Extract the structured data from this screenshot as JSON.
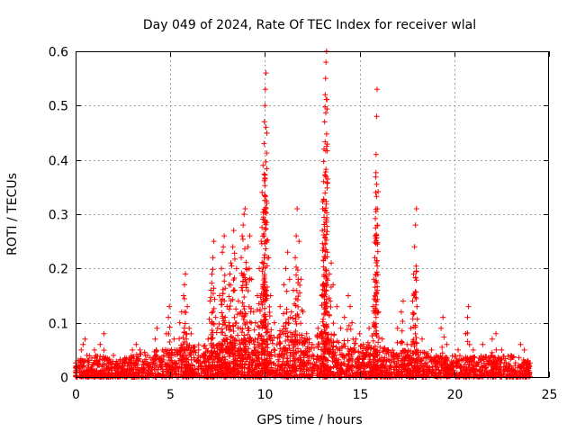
{
  "chart_data": {
    "type": "scatter",
    "title": "Day 049 of 2024, Rate Of TEC Index for receiver wlal",
    "xlabel": "GPS time / hours",
    "ylabel": "ROTI / TECUs",
    "xlim": [
      0,
      25
    ],
    "ylim": [
      0,
      0.6
    ],
    "xticks": [
      0,
      5,
      10,
      15,
      20,
      25
    ],
    "yticks": [
      0,
      0.1,
      0.2,
      0.3,
      0.4,
      0.5,
      0.6
    ],
    "xtick_labels": [
      "0",
      "5",
      "10",
      "15",
      "20",
      "25"
    ],
    "ytick_labels": [
      "0",
      "0.1",
      "0.2",
      "0.3",
      "0.4",
      "0.5",
      "0.6"
    ],
    "grid": true,
    "marker": "+",
    "series_color": "#ff0000",
    "series": [
      {
        "name": "ROTI",
        "points": [
          [
            0.2,
            0.03
          ],
          [
            0.3,
            0.05
          ],
          [
            0.4,
            0.06
          ],
          [
            0.5,
            0.07
          ],
          [
            0.6,
            0.04
          ],
          [
            1.0,
            0.05
          ],
          [
            1.3,
            0.06
          ],
          [
            1.5,
            0.08
          ],
          [
            2.0,
            0.04
          ],
          [
            2.5,
            0.03
          ],
          [
            3.0,
            0.05
          ],
          [
            3.2,
            0.06
          ],
          [
            3.4,
            0.05
          ],
          [
            3.8,
            0.04
          ],
          [
            4.2,
            0.07
          ],
          [
            4.3,
            0.09
          ],
          [
            4.6,
            0.05
          ],
          [
            4.8,
            0.08
          ],
          [
            4.9,
            0.11
          ],
          [
            4.95,
            0.13
          ],
          [
            5.2,
            0.07
          ],
          [
            5.5,
            0.1
          ],
          [
            5.6,
            0.12
          ],
          [
            5.7,
            0.15
          ],
          [
            5.75,
            0.17
          ],
          [
            5.8,
            0.19
          ],
          [
            5.9,
            0.13
          ],
          [
            6.0,
            0.09
          ],
          [
            6.1,
            0.08
          ],
          [
            6.5,
            0.05
          ],
          [
            7.0,
            0.07
          ],
          [
            7.1,
            0.14
          ],
          [
            7.15,
            0.16
          ],
          [
            7.2,
            0.19
          ],
          [
            7.25,
            0.22
          ],
          [
            7.3,
            0.25
          ],
          [
            7.4,
            0.11
          ],
          [
            7.5,
            0.09
          ],
          [
            7.6,
            0.15
          ],
          [
            7.7,
            0.2
          ],
          [
            7.75,
            0.23
          ],
          [
            7.8,
            0.24
          ],
          [
            7.85,
            0.26
          ],
          [
            7.9,
            0.11
          ],
          [
            8.0,
            0.13
          ],
          [
            8.1,
            0.17
          ],
          [
            8.15,
            0.19
          ],
          [
            8.2,
            0.21
          ],
          [
            8.3,
            0.24
          ],
          [
            8.35,
            0.27
          ],
          [
            8.4,
            0.16
          ],
          [
            8.5,
            0.2
          ],
          [
            8.6,
            0.14
          ],
          [
            8.7,
            0.09
          ],
          [
            8.75,
            0.22
          ],
          [
            8.8,
            0.26
          ],
          [
            8.85,
            0.28
          ],
          [
            8.9,
            0.3
          ],
          [
            8.95,
            0.31
          ],
          [
            9.0,
            0.2
          ],
          [
            9.1,
            0.24
          ],
          [
            9.2,
            0.26
          ],
          [
            9.3,
            0.18
          ],
          [
            9.4,
            0.12
          ],
          [
            9.5,
            0.1
          ],
          [
            9.6,
            0.15
          ],
          [
            9.7,
            0.2
          ],
          [
            9.8,
            0.25
          ],
          [
            9.85,
            0.34
          ],
          [
            9.9,
            0.39
          ],
          [
            9.95,
            0.43
          ],
          [
            9.97,
            0.47
          ],
          [
            10.0,
            0.5
          ],
          [
            10.02,
            0.53
          ],
          [
            10.05,
            0.56
          ],
          [
            10.1,
            0.32
          ],
          [
            10.2,
            0.22
          ],
          [
            10.3,
            0.15
          ],
          [
            10.5,
            0.1
          ],
          [
            10.8,
            0.13
          ],
          [
            11.0,
            0.17
          ],
          [
            11.1,
            0.2
          ],
          [
            11.2,
            0.23
          ],
          [
            11.3,
            0.18
          ],
          [
            11.4,
            0.12
          ],
          [
            11.5,
            0.16
          ],
          [
            11.6,
            0.22
          ],
          [
            11.65,
            0.26
          ],
          [
            11.7,
            0.31
          ],
          [
            11.8,
            0.25
          ],
          [
            11.9,
            0.18
          ],
          [
            12.0,
            0.12
          ],
          [
            12.2,
            0.08
          ],
          [
            12.5,
            0.06
          ],
          [
            12.8,
            0.09
          ],
          [
            13.0,
            0.15
          ],
          [
            13.05,
            0.31
          ],
          [
            13.1,
            0.36
          ],
          [
            13.12,
            0.42
          ],
          [
            13.15,
            0.47
          ],
          [
            13.18,
            0.52
          ],
          [
            13.2,
            0.55
          ],
          [
            13.22,
            0.58
          ],
          [
            13.25,
            0.6
          ],
          [
            13.3,
            0.23
          ],
          [
            13.4,
            0.19
          ],
          [
            13.5,
            0.21
          ],
          [
            13.6,
            0.17
          ],
          [
            13.8,
            0.13
          ],
          [
            14.0,
            0.09
          ],
          [
            14.2,
            0.11
          ],
          [
            14.4,
            0.15
          ],
          [
            14.5,
            0.13
          ],
          [
            14.6,
            0.1
          ],
          [
            14.8,
            0.07
          ],
          [
            15.0,
            0.08
          ],
          [
            15.2,
            0.06
          ],
          [
            15.5,
            0.09
          ],
          [
            15.7,
            0.13
          ],
          [
            15.75,
            0.18
          ],
          [
            15.8,
            0.22
          ],
          [
            15.82,
            0.26
          ],
          [
            15.85,
            0.34
          ],
          [
            15.87,
            0.41
          ],
          [
            15.9,
            0.48
          ],
          [
            15.92,
            0.53
          ],
          [
            16.0,
            0.12
          ],
          [
            16.2,
            0.07
          ],
          [
            16.5,
            0.05
          ],
          [
            17.0,
            0.09
          ],
          [
            17.2,
            0.12
          ],
          [
            17.3,
            0.14
          ],
          [
            17.5,
            0.06
          ],
          [
            17.7,
            0.09
          ],
          [
            17.8,
            0.14
          ],
          [
            17.85,
            0.19
          ],
          [
            17.9,
            0.24
          ],
          [
            17.95,
            0.28
          ],
          [
            18.0,
            0.31
          ],
          [
            18.3,
            0.07
          ],
          [
            18.8,
            0.05
          ],
          [
            19.3,
            0.09
          ],
          [
            19.4,
            0.11
          ],
          [
            19.6,
            0.06
          ],
          [
            20.2,
            0.05
          ],
          [
            20.6,
            0.08
          ],
          [
            20.7,
            0.11
          ],
          [
            20.75,
            0.13
          ],
          [
            21.0,
            0.05
          ],
          [
            21.5,
            0.06
          ],
          [
            22.0,
            0.07
          ],
          [
            22.2,
            0.08
          ],
          [
            22.5,
            0.05
          ],
          [
            23.0,
            0.04
          ],
          [
            23.5,
            0.06
          ],
          [
            23.7,
            0.05
          ],
          [
            23.9,
            0.03
          ]
        ],
        "baseline_band": {
          "x_range": [
            0,
            24
          ],
          "typical_values": [
            0.0,
            0.05
          ],
          "envelope_hours": [
            0,
            1,
            2,
            3,
            4,
            5,
            6,
            7,
            8,
            9,
            10,
            11,
            12,
            13,
            14,
            15,
            16,
            17,
            18,
            19,
            20,
            21,
            22,
            23,
            24
          ],
          "envelope_roti": [
            0.03,
            0.045,
            0.03,
            0.04,
            0.05,
            0.05,
            0.06,
            0.06,
            0.07,
            0.07,
            0.08,
            0.09,
            0.07,
            0.08,
            0.07,
            0.06,
            0.06,
            0.05,
            0.05,
            0.04,
            0.04,
            0.04,
            0.04,
            0.04,
            0.03
          ]
        }
      }
    ]
  }
}
